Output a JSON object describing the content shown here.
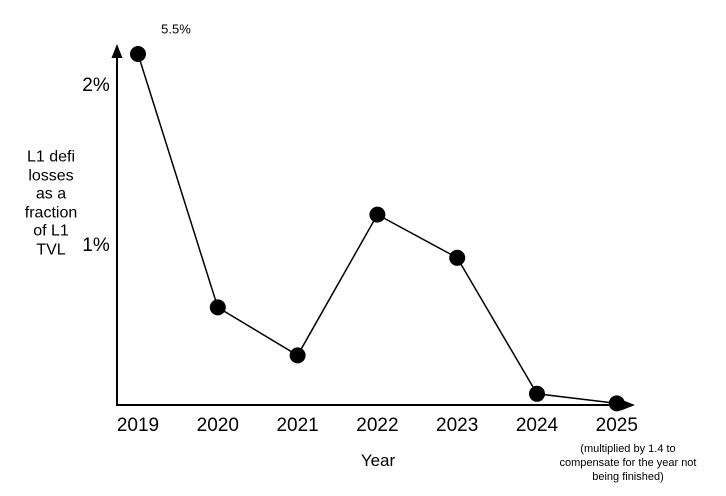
{
  "chart_data": {
    "type": "line",
    "title": "",
    "categories": [
      "2019",
      "2020",
      "2021",
      "2022",
      "2023",
      "2024",
      "2025"
    ],
    "values": [
      5.5,
      0.61,
      0.31,
      1.19,
      0.92,
      0.07,
      0.01
    ],
    "xlabel": "Year",
    "ylabel": "L1 defi\nlosses\nas a\nfraction\nof L1\nTVL",
    "y_ticks": [
      {
        "label": "2%",
        "value": 2
      },
      {
        "label": "1%",
        "value": 1
      }
    ],
    "ylim": [
      0,
      2.2
    ],
    "grid": false,
    "legend": "none",
    "first_point_plotted_offscale": true,
    "annotations": [
      {
        "text": "5.5%",
        "target_category": "2019"
      }
    ],
    "footnote": "(multiplied by 1.4 to\ncompensate for the year not\nbeing finished)",
    "colors": {
      "line": "#000000",
      "marker": "#000000",
      "axis": "#000000",
      "background": "#ffffff"
    }
  }
}
